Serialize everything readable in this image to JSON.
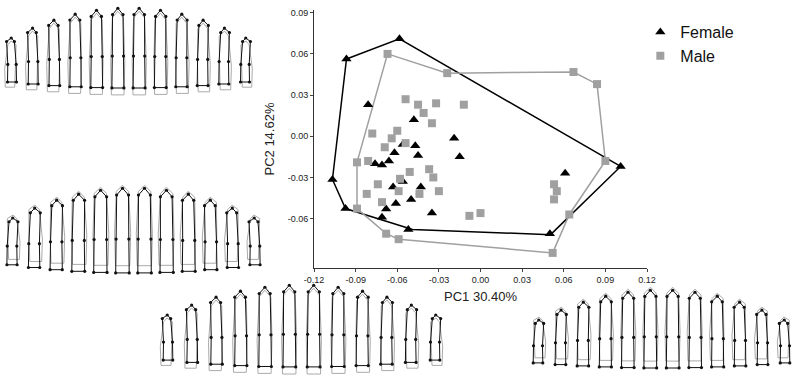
{
  "chart_data": {
    "type": "scatter",
    "xlabel": "PC1 30.40%",
    "ylabel": "PC2 14.62%",
    "xlim": [
      -0.12,
      0.12
    ],
    "ylim": [
      -0.096,
      0.092
    ],
    "xticks": [
      -0.12,
      -0.09,
      -0.06,
      -0.03,
      {
        "value": 0,
        "label": "0.00"
      },
      0.03,
      0.06,
      0.09,
      0.12
    ],
    "yticks": [
      -0.06,
      -0.03,
      {
        "value": 0,
        "label": "0.00"
      },
      0.03,
      0.06,
      0.09
    ],
    "grid": false,
    "legend": "top right",
    "series": [
      {
        "name": "Female",
        "color": "#000000",
        "marker": "triangle-up",
        "x": [
          -0.0966,
          -0.0584,
          -0.081,
          -0.048,
          -0.076,
          -0.071,
          -0.066,
          -0.062,
          -0.056,
          -0.047,
          -0.045,
          -0.05,
          -0.035,
          -0.068,
          -0.071,
          -0.063,
          -0.056,
          -0.043,
          -0.019,
          -0.015,
          0.061,
          0.05,
          0.101,
          -0.0973,
          -0.1067,
          -0.052,
          -0.061
        ],
        "y": [
          0.0563,
          0.071,
          0.023,
          0.012,
          -0.02,
          -0.021,
          -0.018,
          -0.012,
          -0.006,
          -0.007,
          -0.014,
          -0.046,
          -0.056,
          -0.053,
          -0.059,
          -0.037,
          -0.033,
          -0.037,
          -0.0015,
          -0.015,
          -0.027,
          -0.071,
          -0.022,
          -0.0527,
          -0.0315,
          -0.068,
          -0.049
        ],
        "hull_x": [
          -0.0966,
          -0.0584,
          0.101,
          0.0505,
          -0.049,
          -0.0973,
          -0.1067
        ],
        "hull_y": [
          0.0563,
          0.071,
          -0.022,
          -0.0717,
          -0.068,
          -0.0527,
          -0.0315
        ]
      },
      {
        "name": "Male",
        "color": "#a0a0a0",
        "marker": "square",
        "x": [
          -0.067,
          -0.024,
          0.067,
          0.084,
          0.09,
          0.064,
          0.052,
          -0.068,
          -0.059,
          -0.089,
          -0.089,
          -0.054,
          -0.045,
          -0.041,
          -0.032,
          -0.035,
          -0.012,
          -0.078,
          -0.064,
          -0.06,
          -0.054,
          -0.069,
          -0.081,
          -0.074,
          -0.082,
          -0.058,
          -0.059,
          -0.051,
          -0.037,
          -0.03,
          -0.034,
          -0.044,
          -0.071,
          -0.008,
          0.0,
          0.053,
          0.055,
          0.053
        ],
        "y": [
          0.06,
          0.046,
          0.0468,
          0.038,
          -0.018,
          -0.057,
          -0.085,
          -0.071,
          -0.075,
          -0.0527,
          -0.019,
          0.027,
          0.023,
          0.017,
          0.024,
          0.0095,
          0.023,
          0.002,
          -0.0015,
          0.004,
          -0.005,
          -0.008,
          -0.018,
          -0.035,
          -0.042,
          -0.031,
          -0.04,
          -0.026,
          -0.024,
          -0.04,
          -0.03,
          -0.042,
          -0.048,
          -0.058,
          -0.056,
          -0.035,
          -0.04,
          -0.046
        ],
        "hull_x": [
          -0.067,
          -0.024,
          0.067,
          0.084,
          0.09,
          0.064,
          0.052,
          -0.059,
          -0.068,
          -0.089,
          -0.089
        ],
        "hull_y": [
          0.06,
          0.046,
          0.0468,
          0.038,
          -0.018,
          -0.057,
          -0.085,
          -0.075,
          -0.071,
          -0.0527,
          -0.019
        ]
      }
    ]
  }
}
